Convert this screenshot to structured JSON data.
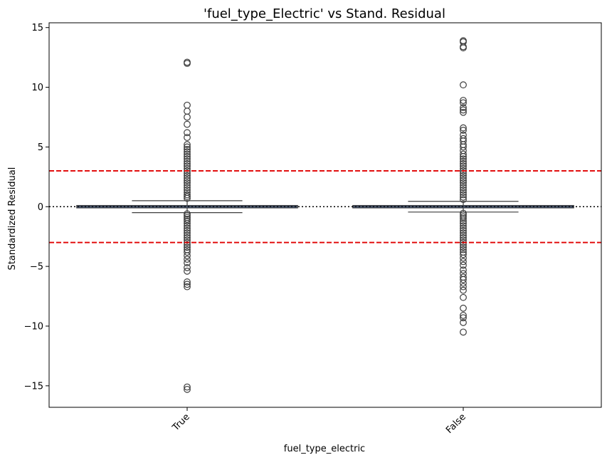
{
  "chart_data": {
    "type": "box",
    "title": "'fuel_type_Electric' vs Stand. Residual",
    "xlabel": "fuel_type_electric",
    "ylabel": "Standardized Residual",
    "ylim": [
      -16.8,
      15.4
    ],
    "yticks": [
      -15,
      -10,
      -5,
      0,
      5,
      10,
      15
    ],
    "categories": [
      "True",
      "False"
    ],
    "colors": {
      "box_fill": "#4c72b0",
      "line": "#3d3d3d",
      "threshold": "#e00000",
      "zero": "#000000"
    },
    "reference_lines": [
      {
        "y": 3,
        "style": "dashed",
        "color": "#e00000"
      },
      {
        "y": -3,
        "style": "dashed",
        "color": "#e00000"
      },
      {
        "y": 0,
        "style": "dotted",
        "color": "#000000"
      }
    ],
    "boxes": [
      {
        "category": "True",
        "q1": -0.03,
        "median": 0.0,
        "q3": 0.03,
        "whisker_low": -0.5,
        "whisker_high": 0.5,
        "outliers": [
          12.1,
          12.0,
          8.5,
          8.0,
          7.5,
          6.9,
          6.2,
          5.8,
          5.2,
          5.0,
          4.8,
          4.6,
          4.4,
          4.2,
          4.0,
          3.8,
          3.6,
          3.4,
          3.2,
          3.0,
          2.8,
          2.6,
          2.4,
          2.2,
          2.0,
          1.8,
          1.6,
          1.4,
          1.2,
          1.0,
          0.85,
          0.7,
          -0.6,
          -0.75,
          -0.9,
          -1.05,
          -1.2,
          -1.4,
          -1.6,
          -1.8,
          -2.0,
          -2.2,
          -2.4,
          -2.6,
          -2.8,
          -3.0,
          -3.2,
          -3.4,
          -3.6,
          -3.8,
          -4.1,
          -4.4,
          -4.7,
          -5.1,
          -5.4,
          -6.3,
          -6.5,
          -6.7,
          -15.1,
          -15.3
        ]
      },
      {
        "category": "False",
        "q1": -0.03,
        "median": 0.0,
        "q3": 0.03,
        "whisker_low": -0.45,
        "whisker_high": 0.45,
        "outliers": [
          13.9,
          13.8,
          13.4,
          13.3,
          10.2,
          8.9,
          8.7,
          8.3,
          8.1,
          7.9,
          6.6,
          6.4,
          6.0,
          5.7,
          5.5,
          5.2,
          5.0,
          4.7,
          4.4,
          4.2,
          4.0,
          3.8,
          3.6,
          3.4,
          3.2,
          3.0,
          2.8,
          2.6,
          2.4,
          2.2,
          2.0,
          1.8,
          1.6,
          1.4,
          1.2,
          1.0,
          0.8,
          0.6,
          -0.55,
          -0.7,
          -0.85,
          -1.0,
          -1.2,
          -1.4,
          -1.6,
          -1.8,
          -2.0,
          -2.2,
          -2.4,
          -2.6,
          -2.8,
          -3.0,
          -3.2,
          -3.4,
          -3.6,
          -3.8,
          -4.0,
          -4.3,
          -4.6,
          -4.9,
          -5.3,
          -5.6,
          -5.9,
          -6.1,
          -6.4,
          -6.7,
          -7.0,
          -7.6,
          -8.5,
          -9.1,
          -9.3,
          -9.7,
          -10.5
        ]
      }
    ]
  }
}
